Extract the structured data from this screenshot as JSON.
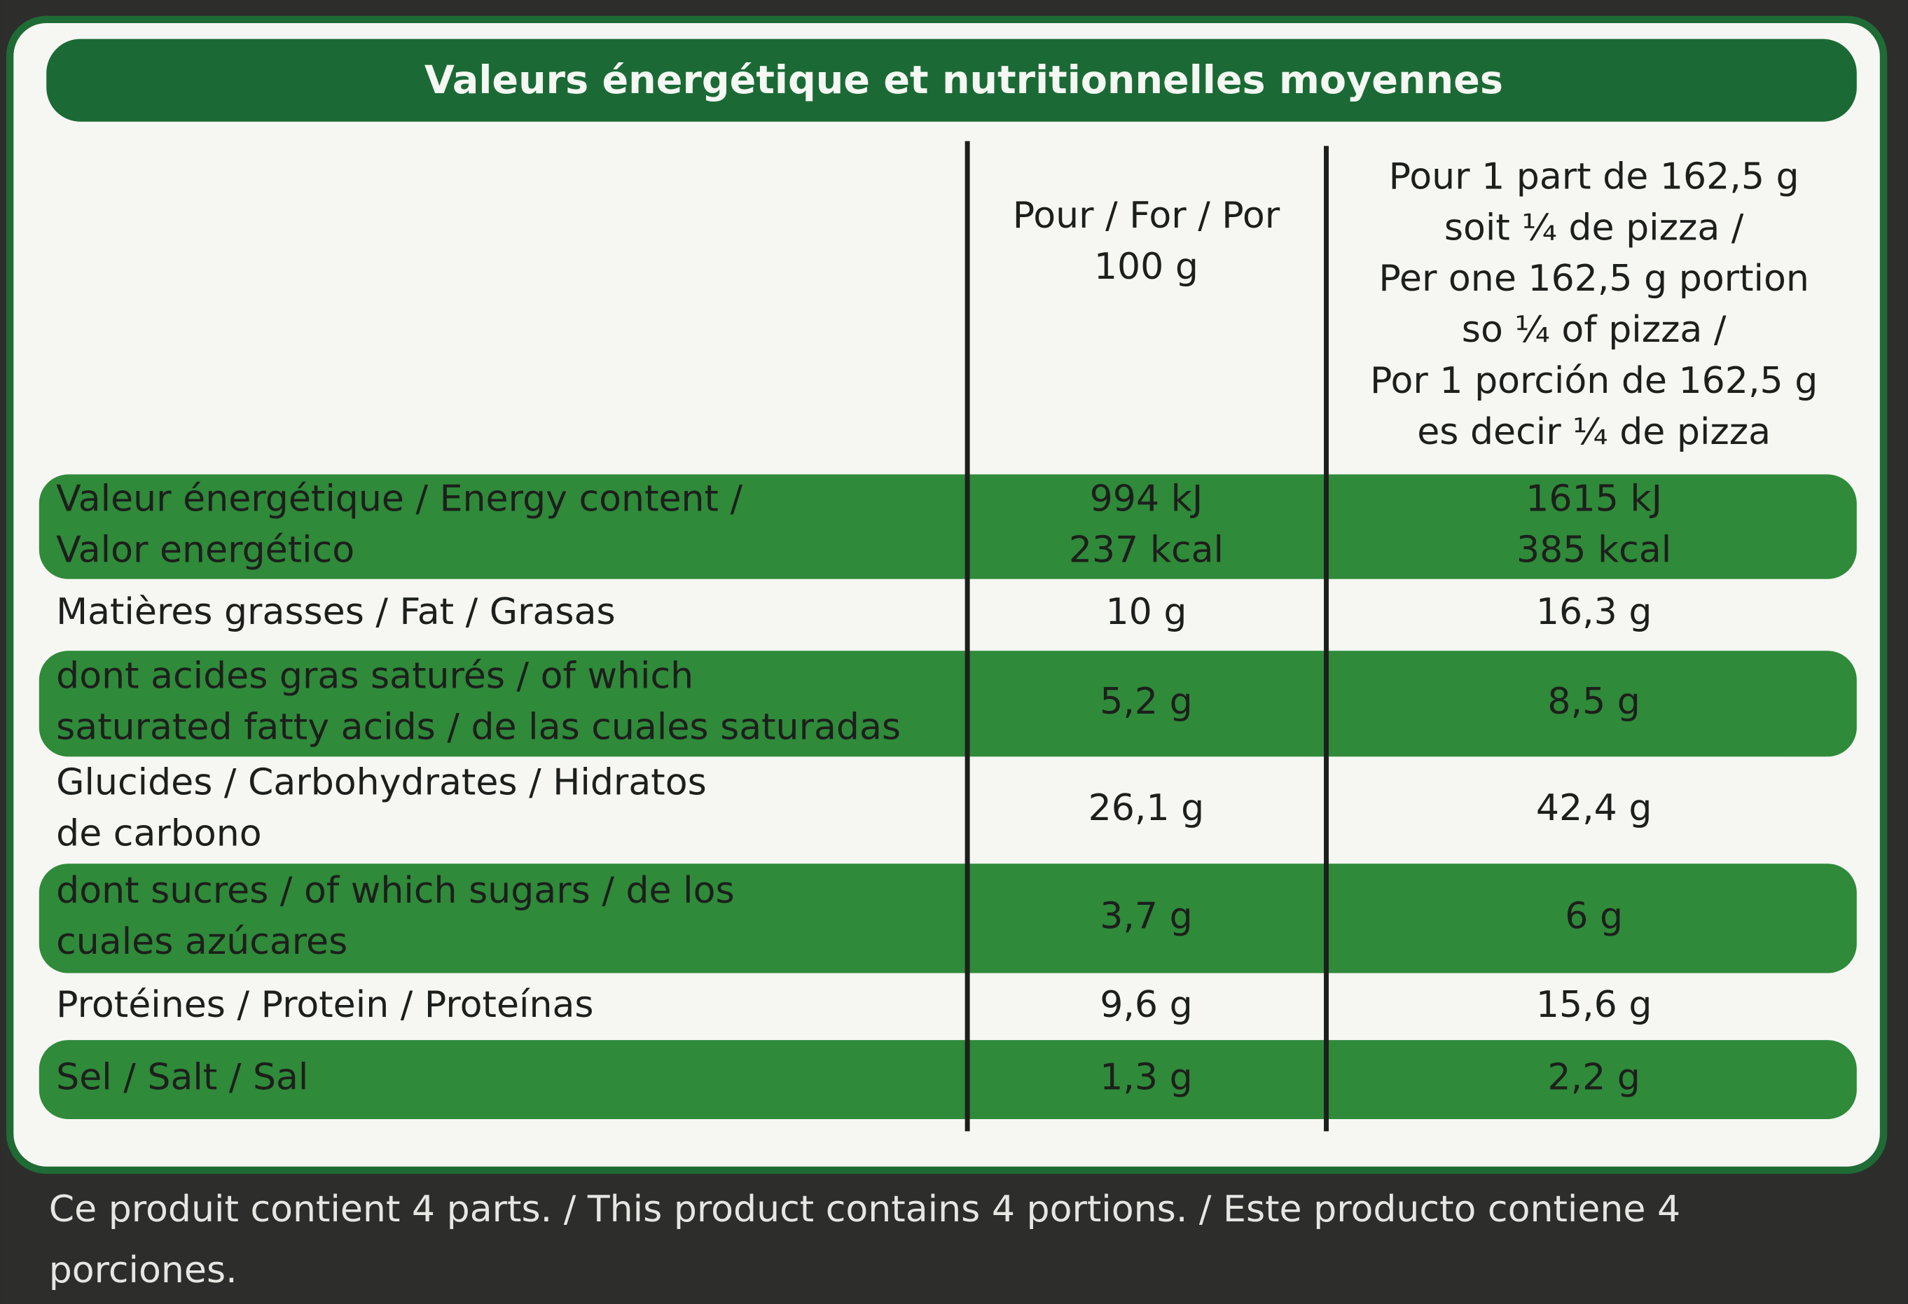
{
  "header": {
    "title": "Valeurs énergétique et nutritionnelles moyennes"
  },
  "table": {
    "columns": [
      [
        "Pour / For / Por",
        "100 g"
      ],
      [
        "Pour 1 part de 162,5 g",
        "soit ¼ de pizza /",
        "Per one 162,5 g portion",
        "so ¼ of pizza /",
        "Por 1 porción de 162,5 g",
        "es decir ¼ de pizza"
      ]
    ],
    "rows": [
      {
        "label": [
          "Valeur énergétique / Energy content /",
          "Valor energético"
        ],
        "per_100g": [
          "994 kJ",
          "237 kcal"
        ],
        "per_portion": [
          "1615 kJ",
          "385 kcal"
        ]
      },
      {
        "label": [
          "Matières grasses / Fat / Grasas"
        ],
        "per_100g": [
          "10 g"
        ],
        "per_portion": [
          "16,3 g"
        ]
      },
      {
        "label": [
          "dont acides gras saturés / of which",
          "saturated fatty acids / de las cuales saturadas"
        ],
        "per_100g": [
          "5,2 g"
        ],
        "per_portion": [
          "8,5 g"
        ]
      },
      {
        "label": [
          "Glucides / Carbohydrates / Hidratos",
          "de carbono"
        ],
        "per_100g": [
          "26,1 g"
        ],
        "per_portion": [
          "42,4 g"
        ]
      },
      {
        "label": [
          "dont sucres / of which sugars / de los",
          "cuales azúcares"
        ],
        "per_100g": [
          "3,7 g"
        ],
        "per_portion": [
          "6 g"
        ]
      },
      {
        "label": [
          "Protéines / Protein / Proteínas"
        ],
        "per_100g": [
          "9,6 g"
        ],
        "per_portion": [
          "15,6 g"
        ]
      },
      {
        "label": [
          "Sel / Salt / Sal"
        ],
        "per_100g": [
          "1,3 g"
        ],
        "per_portion": [
          "2,2 g"
        ]
      }
    ]
  },
  "footnote": [
    "Ce produit contient 4 parts. / This product contains 4 portions. / Este producto contiene 4",
    "porciones."
  ]
}
